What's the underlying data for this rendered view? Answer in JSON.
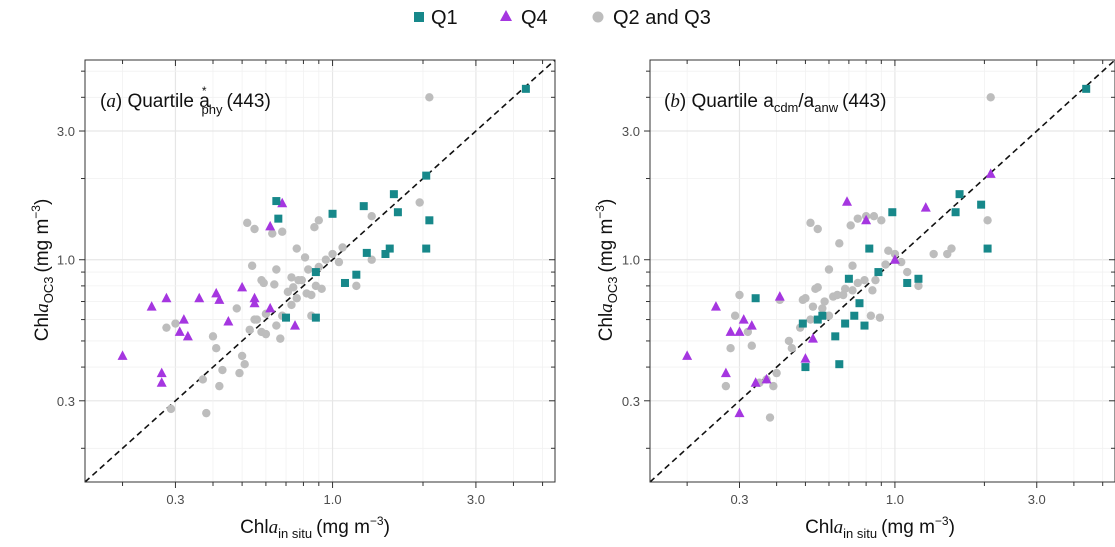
{
  "legend": {
    "items": [
      {
        "key": "q1",
        "label": "Q1",
        "color": "#17888A",
        "shape": "square"
      },
      {
        "key": "q4",
        "label": "Q4",
        "color": "#A536E0",
        "shape": "triangle"
      },
      {
        "key": "q23",
        "label": "Q2 and Q3",
        "color": "#BDBDBD",
        "shape": "circle"
      }
    ]
  },
  "chart_data": [
    {
      "type": "scatter",
      "panel_letter": "a",
      "title_prefix": "Quartile a",
      "title_sup": "*",
      "title_sub": "phy",
      "title_suffix": "(443)",
      "xlabel": {
        "base": "Chl",
        "ital": "a",
        "sub": "in situ",
        "units": "(mg m",
        "sup": "−3",
        "close": ")"
      },
      "ylabel": {
        "base": "Chl",
        "ital": "a",
        "sub": "OC3",
        "units": "(mg m",
        "sup": "−3",
        "close": ")"
      },
      "scale": "log",
      "xlim": [
        0.15,
        5.5
      ],
      "ylim": [
        0.15,
        5.5
      ],
      "ticks": [
        0.3,
        1.0,
        3.0
      ],
      "tick_labels": [
        "0.3",
        "1.0",
        "3.0"
      ],
      "reference_line": "1:1 dashed",
      "grid": true,
      "series": [
        {
          "name": "Q1",
          "points": [
            [
              0.65,
              1.65
            ],
            [
              0.66,
              1.42
            ],
            [
              1.0,
              1.48
            ],
            [
              1.27,
              1.58
            ],
            [
              1.6,
              1.75
            ],
            [
              1.65,
              1.5
            ],
            [
              2.05,
              2.05
            ],
            [
              2.1,
              1.4
            ],
            [
              2.05,
              1.1
            ],
            [
              1.3,
              1.06
            ],
            [
              1.55,
              1.1
            ],
            [
              1.5,
              1.05
            ],
            [
              1.1,
              0.82
            ],
            [
              1.2,
              0.88
            ],
            [
              0.88,
              0.9
            ],
            [
              0.7,
              0.61
            ],
            [
              0.88,
              0.61
            ],
            [
              4.4,
              4.3
            ]
          ]
        },
        {
          "name": "Q4",
          "points": [
            [
              0.2,
              0.44
            ],
            [
              0.25,
              0.67
            ],
            [
              0.27,
              0.38
            ],
            [
              0.27,
              0.35
            ],
            [
              0.28,
              0.72
            ],
            [
              0.31,
              0.54
            ],
            [
              0.32,
              0.6
            ],
            [
              0.33,
              0.52
            ],
            [
              0.36,
              0.72
            ],
            [
              0.41,
              0.75
            ],
            [
              0.42,
              0.71
            ],
            [
              0.45,
              0.59
            ],
            [
              0.5,
              0.79
            ],
            [
              0.55,
              0.72
            ],
            [
              0.55,
              0.69
            ],
            [
              0.62,
              0.66
            ],
            [
              0.68,
              1.62
            ],
            [
              0.62,
              1.33
            ],
            [
              0.75,
              0.57
            ]
          ]
        },
        {
          "name": "Q2 and Q3",
          "points": [
            [
              0.28,
              0.56
            ],
            [
              0.3,
              0.58
            ],
            [
              0.29,
              0.28
            ],
            [
              0.37,
              0.36
            ],
            [
              0.38,
              0.27
            ],
            [
              0.42,
              0.34
            ],
            [
              0.43,
              0.39
            ],
            [
              0.4,
              0.52
            ],
            [
              0.41,
              0.47
            ],
            [
              0.49,
              0.38
            ],
            [
              0.51,
              0.41
            ],
            [
              0.5,
              0.44
            ],
            [
              0.53,
              0.55
            ],
            [
              0.56,
              0.6
            ],
            [
              0.58,
              0.54
            ],
            [
              0.55,
              0.6
            ],
            [
              0.6,
              0.63
            ],
            [
              0.65,
              0.57
            ],
            [
              0.67,
              0.51
            ],
            [
              0.68,
              0.62
            ],
            [
              0.73,
              0.68
            ],
            [
              0.76,
              0.72
            ],
            [
              0.82,
              0.75
            ],
            [
              0.85,
              0.62
            ],
            [
              0.88,
              0.8
            ],
            [
              0.92,
              0.78
            ],
            [
              0.85,
              0.74
            ],
            [
              0.74,
              0.79
            ],
            [
              0.71,
              0.76
            ],
            [
              0.73,
              0.86
            ],
            [
              0.77,
              0.84
            ],
            [
              0.79,
              0.84
            ],
            [
              0.83,
              0.92
            ],
            [
              0.9,
              0.94
            ],
            [
              0.95,
              1.0
            ],
            [
              1.05,
              0.98
            ],
            [
              1.2,
              0.8
            ],
            [
              1.35,
              1.0
            ],
            [
              0.63,
              1.25
            ],
            [
              0.68,
              1.27
            ],
            [
              0.58,
              0.84
            ],
            [
              0.59,
              0.82
            ],
            [
              0.65,
              0.92
            ],
            [
              0.54,
              0.95
            ],
            [
              0.52,
              1.37
            ],
            [
              0.55,
              1.3
            ],
            [
              0.64,
              0.81
            ],
            [
              0.76,
              1.1
            ],
            [
              0.81,
              1.02
            ],
            [
              0.87,
              1.32
            ],
            [
              0.9,
              1.4
            ],
            [
              1.0,
              1.05
            ],
            [
              1.08,
              1.11
            ],
            [
              1.35,
              1.45
            ],
            [
              1.95,
              1.63
            ],
            [
              2.1,
              4.0
            ],
            [
              0.48,
              0.66
            ],
            [
              0.6,
              0.53
            ]
          ]
        }
      ]
    },
    {
      "type": "scatter",
      "panel_letter": "b",
      "title_prefix": "Quartile a",
      "title_sub": "cdm",
      "title_mid": "/a",
      "title_sub2": "anw",
      "title_suffix": "(443)",
      "xlabel": {
        "base": "Chl",
        "ital": "a",
        "sub": "in situ",
        "units": "(mg m",
        "sup": "−3",
        "close": ")"
      },
      "ylabel": {
        "base": "Chl",
        "ital": "a",
        "sub": "OC3",
        "units": "(mg m",
        "sup": "−3",
        "close": ")"
      },
      "scale": "log",
      "xlim": [
        0.15,
        5.5
      ],
      "ylim": [
        0.15,
        5.5
      ],
      "ticks": [
        0.3,
        1.0,
        3.0
      ],
      "tick_labels": [
        "0.3",
        "1.0",
        "3.0"
      ],
      "reference_line": "1:1 dashed",
      "grid": true,
      "series": [
        {
          "name": "Q1",
          "points": [
            [
              0.34,
              0.72
            ],
            [
              0.49,
              0.58
            ],
            [
              0.5,
              0.4
            ],
            [
              0.55,
              0.6
            ],
            [
              0.57,
              0.62
            ],
            [
              0.63,
              0.52
            ],
            [
              0.65,
              0.41
            ],
            [
              0.68,
              0.58
            ],
            [
              0.7,
              0.85
            ],
            [
              0.73,
              0.62
            ],
            [
              0.76,
              0.69
            ],
            [
              0.79,
              0.57
            ],
            [
              0.82,
              1.1
            ],
            [
              0.88,
              0.9
            ],
            [
              0.98,
              1.5
            ],
            [
              1.1,
              0.82
            ],
            [
              1.2,
              0.85
            ],
            [
              1.6,
              1.5
            ],
            [
              1.65,
              1.75
            ],
            [
              1.95,
              1.6
            ],
            [
              2.05,
              1.1
            ],
            [
              4.4,
              4.3
            ]
          ]
        },
        {
          "name": "Q4",
          "points": [
            [
              0.2,
              0.44
            ],
            [
              0.25,
              0.67
            ],
            [
              0.27,
              0.38
            ],
            [
              0.28,
              0.54
            ],
            [
              0.3,
              0.27
            ],
            [
              0.3,
              0.54
            ],
            [
              0.31,
              0.6
            ],
            [
              0.33,
              0.57
            ],
            [
              0.34,
              0.35
            ],
            [
              0.37,
              0.36
            ],
            [
              0.41,
              0.73
            ],
            [
              0.5,
              0.43
            ],
            [
              0.53,
              0.51
            ],
            [
              0.69,
              1.64
            ],
            [
              0.8,
              1.4
            ],
            [
              1.0,
              1.0
            ],
            [
              1.27,
              1.56
            ],
            [
              2.1,
              2.08
            ]
          ]
        },
        {
          "name": "Q2 and Q3",
          "points": [
            [
              0.27,
              0.34
            ],
            [
              0.28,
              0.47
            ],
            [
              0.3,
              0.74
            ],
            [
              0.29,
              0.62
            ],
            [
              0.32,
              0.54
            ],
            [
              0.33,
              0.48
            ],
            [
              0.35,
              0.35
            ],
            [
              0.37,
              0.36
            ],
            [
              0.38,
              0.26
            ],
            [
              0.39,
              0.34
            ],
            [
              0.4,
              0.38
            ],
            [
              0.41,
              0.71
            ],
            [
              0.44,
              0.5
            ],
            [
              0.45,
              0.47
            ],
            [
              0.48,
              0.56
            ],
            [
              0.49,
              0.71
            ],
            [
              0.5,
              0.72
            ],
            [
              0.52,
              0.6
            ],
            [
              0.53,
              0.67
            ],
            [
              0.54,
              0.78
            ],
            [
              0.55,
              0.79
            ],
            [
              0.57,
              0.66
            ],
            [
              0.58,
              0.7
            ],
            [
              0.6,
              0.62
            ],
            [
              0.62,
              0.73
            ],
            [
              0.64,
              0.74
            ],
            [
              0.67,
              0.74
            ],
            [
              0.68,
              0.78
            ],
            [
              0.72,
              0.77
            ],
            [
              0.75,
              0.82
            ],
            [
              0.79,
              0.84
            ],
            [
              0.83,
              0.62
            ],
            [
              0.86,
              0.84
            ],
            [
              0.89,
              0.61
            ],
            [
              0.93,
              0.96
            ],
            [
              1.0,
              1.05
            ],
            [
              1.05,
              0.98
            ],
            [
              1.2,
              0.8
            ],
            [
              1.35,
              1.05
            ],
            [
              1.5,
              1.05
            ],
            [
              1.55,
              1.1
            ],
            [
              0.52,
              1.37
            ],
            [
              0.55,
              1.3
            ],
            [
              0.65,
              1.15
            ],
            [
              0.71,
              1.34
            ],
            [
              0.75,
              1.42
            ],
            [
              0.8,
              1.45
            ],
            [
              0.85,
              1.45
            ],
            [
              0.9,
              1.4
            ],
            [
              0.72,
              0.95
            ],
            [
              0.95,
              1.08
            ],
            [
              1.1,
              0.9
            ],
            [
              2.05,
              1.4
            ],
            [
              2.1,
              4.0
            ],
            [
              0.6,
              0.92
            ],
            [
              0.84,
              0.77
            ]
          ]
        }
      ]
    }
  ]
}
